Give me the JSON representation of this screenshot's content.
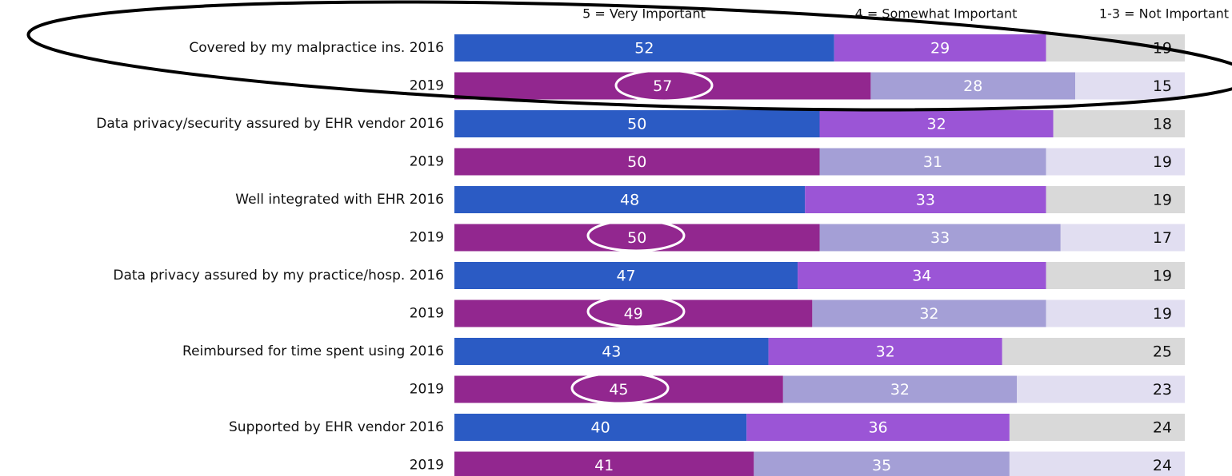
{
  "chart_data": {
    "type": "stacked_bar_horizontal",
    "categories": [
      "Covered by my malpractice ins. 2016",
      "2019",
      "Data privacy/security assured by EHR vendor 2016",
      "2019",
      "Well integrated with EHR 2016",
      "2019",
      "Data privacy assured by my practice/hosp. 2016",
      "2019",
      "Reimbursed for time spent using 2016",
      "2019",
      "Supported by EHR vendor 2016",
      "2019"
    ],
    "series": [
      {
        "name": "5 = Very Important",
        "values": [
          52,
          57,
          50,
          50,
          48,
          50,
          47,
          49,
          43,
          45,
          40,
          41
        ],
        "colors": [
          "#2b5bc4",
          "#92278f",
          "#2b5bc4",
          "#92278f",
          "#2b5bc4",
          "#92278f",
          "#2b5bc4",
          "#92278f",
          "#2b5bc4",
          "#92278f",
          "#2b5bc4",
          "#92278f"
        ],
        "label_color": "#ffffff"
      },
      {
        "name": "4 = Somewhat Important",
        "values": [
          29,
          28,
          32,
          31,
          33,
          33,
          34,
          32,
          32,
          32,
          36,
          35
        ],
        "colors": [
          "#9b55d6",
          "#a49fd6",
          "#9b55d6",
          "#a49fd6",
          "#9b55d6",
          "#a49fd6",
          "#9b55d6",
          "#a49fd6",
          "#9b55d6",
          "#a49fd6",
          "#9b55d6",
          "#a49fd6"
        ],
        "label_color": "#ffffff"
      },
      {
        "name": "1-3 = Not Important",
        "values": [
          19,
          15,
          18,
          19,
          19,
          17,
          19,
          19,
          25,
          23,
          24,
          24
        ],
        "colors": [
          "#d9d9d9",
          "#e1def1",
          "#d9d9d9",
          "#e1def1",
          "#d9d9d9",
          "#e1def1",
          "#d9d9d9",
          "#e1def1",
          "#d9d9d9",
          "#e1def1",
          "#d9d9d9",
          "#e1def1"
        ],
        "label_color": "#111111"
      }
    ],
    "xlim": [
      0,
      100
    ]
  }
}
